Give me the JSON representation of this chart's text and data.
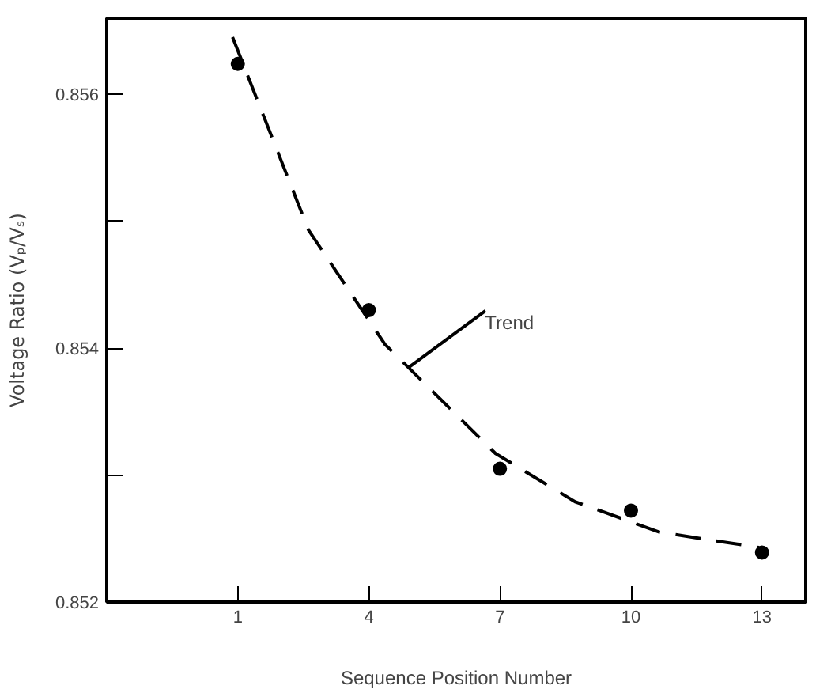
{
  "chart_data": {
    "type": "scatter",
    "xlabel": "Sequence Position Number",
    "ylabel": "Voltage Ratio (Vₚ/Vₛ)",
    "xlim": [
      -2,
      14
    ],
    "xticks": [
      1,
      4,
      7,
      10,
      13
    ],
    "ylim": [
      0.852,
      0.8566
    ],
    "yticks": [
      0.852,
      {
        "value": 0.853,
        "label": null
      },
      0.854,
      {
        "value": 0.855,
        "label": null
      },
      0.856
    ],
    "grid": false,
    "marker": "circle",
    "series": [
      {
        "color": "#000000",
        "x": [
          1,
          4,
          7,
          10,
          13
        ],
        "values": [
          0.85624,
          0.8543,
          0.85305,
          0.85272,
          0.85239
        ]
      },
      {
        "type": "line",
        "line_style": "dashed",
        "marker": "none",
        "color": "#000000",
        "x": [
          0.88,
          2.62,
          4.37,
          6.9,
          8.72,
          10.66,
          12.93
        ],
        "values": [
          0.85645,
          0.85493,
          0.85403,
          0.85317,
          0.85279,
          0.85255,
          0.85243
        ]
      }
    ],
    "annotations": [
      {
        "text": "Trend",
        "x": 4.92,
        "y": 0.85385
      }
    ]
  }
}
